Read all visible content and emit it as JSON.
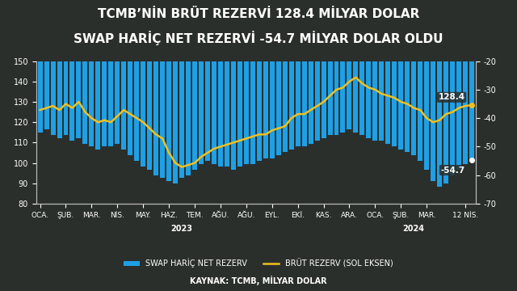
{
  "chart_data": {
    "type": "bar_line",
    "title": "TCMB’NİN BRÜT REZERVİ 128.4 MİLYAR DOLAR",
    "subtitle": "SWAP HARİÇ NET REZERVİ -54.7 MİLYAR DOLAR OLDU",
    "source": "KAYNAK: TCMB, MİLYAR DOLAR",
    "categories": [
      "OCA.",
      null,
      null,
      null,
      "ŞUB.",
      null,
      null,
      null,
      "MAR.",
      null,
      null,
      null,
      "NİS.",
      null,
      null,
      null,
      "MAY.",
      null,
      null,
      null,
      "HAZ.",
      null,
      null,
      null,
      "TEM.",
      null,
      null,
      null,
      "AĞU.",
      null,
      null,
      null,
      "AĞU.",
      null,
      null,
      null,
      "EYL.",
      null,
      null,
      null,
      "EKİ.",
      null,
      null,
      null,
      "KAS.",
      null,
      null,
      null,
      "ARA.",
      null,
      null,
      null,
      "OCA.",
      null,
      null,
      null,
      "ŞUB.",
      null,
      null,
      null,
      "MAR.",
      null,
      null,
      null,
      null,
      null,
      "12 NİS.",
      null
    ],
    "x_groups": [
      {
        "label": "2023",
        "category": 22
      },
      {
        "label": "2024",
        "category": 58
      }
    ],
    "series": [
      {
        "name": "SWAP HARİÇ NET REZERV",
        "type": "bar",
        "axis": "y2",
        "color": "#1ea0e6",
        "values": [
          -45,
          -44,
          -46,
          -47,
          -46,
          -48,
          -47,
          -49,
          -50,
          -51,
          -50,
          -50,
          -49,
          -51,
          -53,
          -55,
          -57,
          -58,
          -60,
          -61,
          -62,
          -63,
          -61,
          -60,
          -58,
          -56,
          -55,
          -56,
          -57,
          -57,
          -58,
          -57,
          -56,
          -56,
          -55,
          -54,
          -54,
          -53,
          -52,
          -51,
          -50,
          -50,
          -49,
          -48,
          -47,
          -46,
          -46,
          -45,
          -44,
          -45,
          -46,
          -47,
          -48,
          -48,
          -49,
          -50,
          -51,
          -52,
          -53,
          -55,
          -58,
          -62,
          -64,
          -63,
          -60,
          -58,
          -56,
          -54.7
        ]
      },
      {
        "name": "BRÜT REZERV (SOL EKSEN)",
        "type": "line",
        "axis": "y",
        "color": "#f0c020",
        "values": [
          126,
          127,
          128,
          126,
          129,
          127,
          130,
          125,
          122,
          120,
          121,
          120,
          123,
          126,
          124,
          122,
          120,
          117,
          114,
          112,
          105,
          100,
          98,
          99,
          100,
          103,
          105,
          107,
          108,
          109,
          110,
          111,
          112,
          113,
          114,
          114,
          116,
          117,
          118,
          122,
          124,
          124,
          126,
          128,
          130,
          133,
          136,
          137,
          140,
          142,
          139,
          137,
          136,
          134,
          133,
          132,
          130,
          129,
          127,
          126,
          122,
          120,
          121,
          124,
          125,
          127,
          128,
          128.4
        ]
      }
    ],
    "ylim": [
      80,
      150
    ],
    "yticks": [
      80,
      90,
      100,
      110,
      120,
      130,
      140,
      150
    ],
    "y2lim": [
      -70,
      -20
    ],
    "y2ticks": [
      -70,
      -60,
      -50,
      -40,
      -30,
      -20
    ],
    "annotations": [
      {
        "text": "128.4",
        "x": 67,
        "y": 128.4,
        "axis": "y"
      },
      {
        "text": "-54.7",
        "x": 67,
        "y": -54.7,
        "axis": "y2"
      }
    ],
    "legend": "lower center",
    "grid": false
  }
}
